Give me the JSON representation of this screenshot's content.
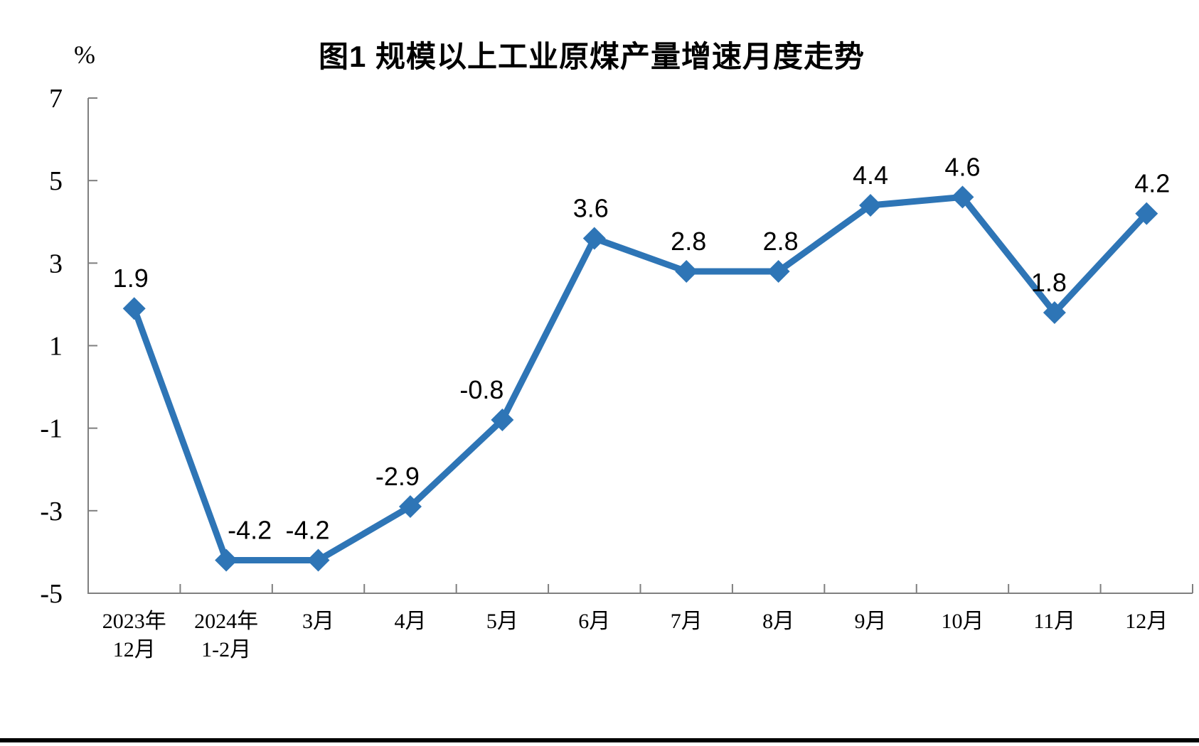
{
  "page": {
    "background": "#FFFFFF",
    "bottom_rule_color": "#000000"
  },
  "chart_data": {
    "type": "line",
    "title": "图1 规模以上工业原煤产量增速月度走势",
    "unit_label": "%",
    "categories": [
      "2023年\n12月",
      "2024年\n1-2月",
      "3月",
      "4月",
      "5月",
      "6月",
      "7月",
      "8月",
      "9月",
      "10月",
      "11月",
      "12月"
    ],
    "values": [
      1.9,
      -4.2,
      -4.2,
      -2.9,
      -0.8,
      3.6,
      2.8,
      2.8,
      4.4,
      4.6,
      1.8,
      4.2
    ],
    "data_labels": [
      "1.9",
      "-4.2",
      "-4.2",
      "-2.9",
      "-0.8",
      "3.6",
      "2.8",
      "2.8",
      "4.4",
      "4.6",
      "1.8",
      "4.2"
    ],
    "y_ticks": [
      7,
      5,
      3,
      1,
      -1,
      -3,
      -5
    ],
    "ylim": [
      -5,
      7
    ],
    "xlabel": "",
    "ylabel": "%",
    "grid": false,
    "legend": false,
    "marker": "diamond",
    "line_color": "#2E75B6",
    "axis_color": "#7F7F7F",
    "text_color": "#000000"
  }
}
